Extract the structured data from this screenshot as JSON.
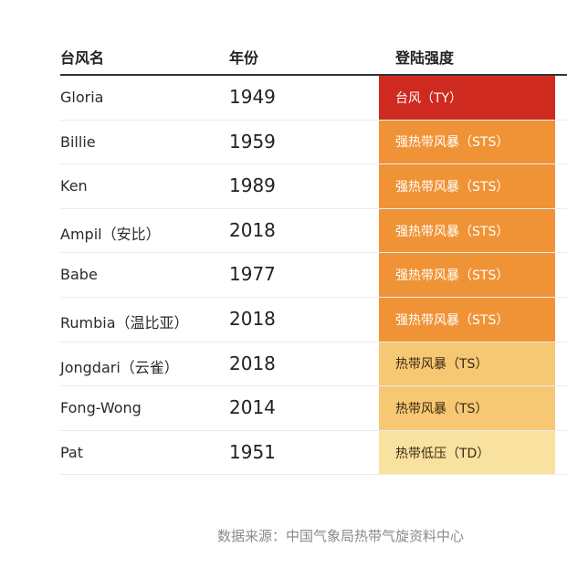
{
  "table": {
    "headers": {
      "name": "台风名",
      "year": "年份",
      "intensity": "登陆强度"
    },
    "rows": [
      {
        "name": "Gloria",
        "year": "1949",
        "intensity": "台风（TY）",
        "level": "ty"
      },
      {
        "name": "Billie",
        "year": "1959",
        "intensity": "强热带风暴（STS）",
        "level": "sts"
      },
      {
        "name": "Ken",
        "year": "1989",
        "intensity": "强热带风暴（STS）",
        "level": "sts"
      },
      {
        "name": "Ampil（安比）",
        "year": "2018",
        "intensity": "强热带风暴（STS）",
        "level": "sts"
      },
      {
        "name": "Babe",
        "year": "1977",
        "intensity": "强热带风暴（STS）",
        "level": "sts"
      },
      {
        "name": "Rumbia（温比亚）",
        "year": "2018",
        "intensity": "强热带风暴（STS）",
        "level": "sts"
      },
      {
        "name": "Jongdari（云雀）",
        "year": "2018",
        "intensity": "热带风暴（TS）",
        "level": "ts"
      },
      {
        "name": "Fong-Wong",
        "year": "2014",
        "intensity": "热带风暴（TS）",
        "level": "ts"
      },
      {
        "name": "Pat",
        "year": "1951",
        "intensity": "热带低压（TD）",
        "level": "td"
      }
    ]
  },
  "colors": {
    "ty": "#cf2a1f",
    "sts": "#f09336",
    "ts": "#f6c874",
    "td": "#f9e2a0"
  },
  "source": "数据来源：中国气象局热带气旋资料中心"
}
